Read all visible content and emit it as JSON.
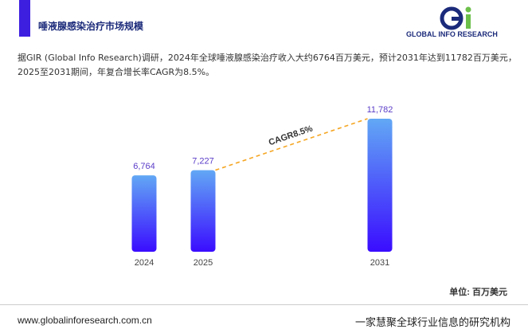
{
  "header": {
    "title": "唾液腺感染治疗市场规模",
    "logo": "GLOBAL INFO RESEARCH"
  },
  "description": [
    "据GIR (Global Info Research)调研，2024年全球唾液腺感染治疗收入大约6764百万美元，预计2031年达到11782百万美元，",
    "2025至2031期间，年复合增长率CAGR为8.5%。"
  ],
  "chart_data": {
    "type": "bar",
    "categories": [
      "2024",
      "2025",
      "2031"
    ],
    "values": [
      6764,
      7227,
      11782
    ],
    "value_labels": [
      "6,764",
      "7,227",
      "11,782"
    ],
    "annotation": "CAGR8.5%",
    "unit": "单位: 百万美元"
  },
  "footer": {
    "website": "www.globalinforesearch.com.cn",
    "slogan": "一家慧聚全球行业信息的研究机构"
  }
}
